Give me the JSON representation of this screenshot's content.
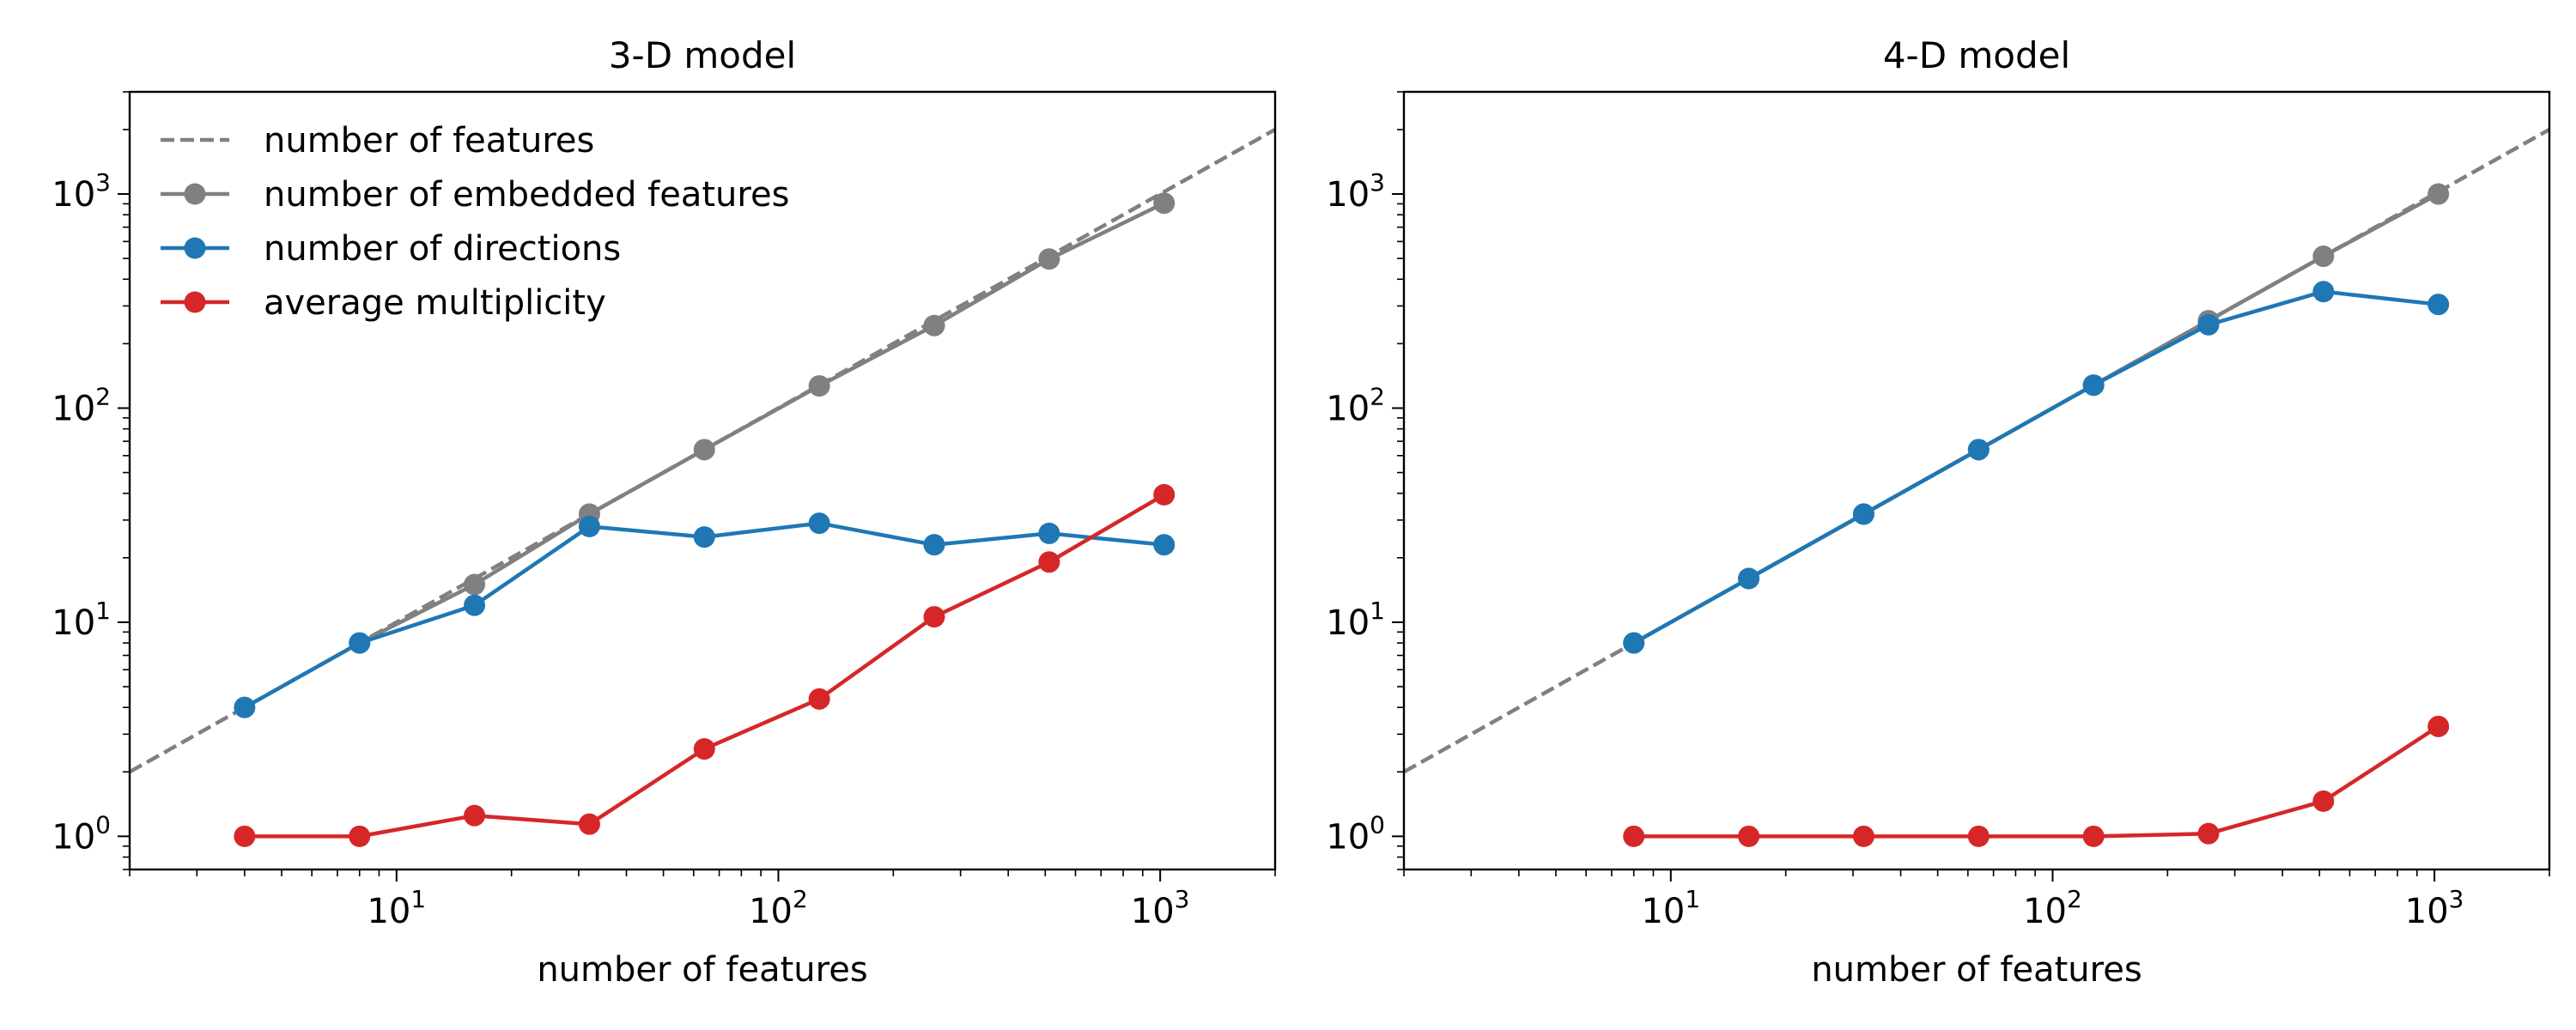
{
  "chart_data": [
    {
      "type": "line",
      "title": "3-D model",
      "xlabel": "number of features",
      "ylabel": "",
      "xscale": "log",
      "yscale": "log",
      "xlim": [
        2,
        2000
      ],
      "ylim": [
        0.7,
        3000
      ],
      "x_ticks": [
        {
          "base": "10",
          "exp": "1",
          "value": 10
        },
        {
          "base": "10",
          "exp": "2",
          "value": 100
        },
        {
          "base": "10",
          "exp": "3",
          "value": 1000
        }
      ],
      "y_ticks": [
        {
          "base": "10",
          "exp": "0",
          "value": 1
        },
        {
          "base": "10",
          "exp": "1",
          "value": 10
        },
        {
          "base": "10",
          "exp": "2",
          "value": 100
        },
        {
          "base": "10",
          "exp": "3",
          "value": 1000
        }
      ],
      "grid": false,
      "legend": "upper-left",
      "series": [
        {
          "name": "number of features",
          "style": "dashed",
          "marker": false,
          "color": "#808080",
          "x": [
            2,
            2000
          ],
          "y": [
            2,
            2000
          ]
        },
        {
          "name": "number of embedded features",
          "style": "solid",
          "marker": true,
          "color": "#808080",
          "x": [
            8,
            16,
            32,
            64,
            128,
            256,
            512,
            1024
          ],
          "y": [
            8,
            15,
            32,
            64,
            127,
            243,
            497,
            906
          ]
        },
        {
          "name": "number of directions",
          "style": "solid",
          "marker": true,
          "color": "#1f77b4",
          "x": [
            4,
            8,
            16,
            32,
            64,
            128,
            256,
            512,
            1024
          ],
          "y": [
            4,
            8,
            12,
            28,
            25,
            29,
            23,
            26,
            23
          ]
        },
        {
          "name": "average multiplicity",
          "style": "solid",
          "marker": true,
          "color": "#d62728",
          "x": [
            4,
            8,
            16,
            32,
            64,
            128,
            256,
            512,
            1024
          ],
          "y": [
            1,
            1,
            1.25,
            1.14,
            2.56,
            4.38,
            10.6,
            19.1,
            39.4
          ]
        }
      ]
    },
    {
      "type": "line",
      "title": "4-D model",
      "xlabel": "number of features",
      "ylabel": "",
      "xscale": "log",
      "yscale": "log",
      "xlim": [
        2,
        2000
      ],
      "ylim": [
        0.7,
        3000
      ],
      "x_ticks": [
        {
          "base": "10",
          "exp": "1",
          "value": 10
        },
        {
          "base": "10",
          "exp": "2",
          "value": 100
        },
        {
          "base": "10",
          "exp": "3",
          "value": 1000
        }
      ],
      "y_ticks": [
        {
          "base": "10",
          "exp": "0",
          "value": 1
        },
        {
          "base": "10",
          "exp": "1",
          "value": 10
        },
        {
          "base": "10",
          "exp": "2",
          "value": 100
        },
        {
          "base": "10",
          "exp": "3",
          "value": 1000
        }
      ],
      "grid": false,
      "legend": "none",
      "series": [
        {
          "name": "number of features",
          "style": "dashed",
          "marker": false,
          "color": "#808080",
          "x": [
            2,
            2000
          ],
          "y": [
            2,
            2000
          ]
        },
        {
          "name": "number of embedded features",
          "style": "solid",
          "marker": true,
          "color": "#808080",
          "x": [
            8,
            16,
            32,
            64,
            128,
            256,
            512,
            1024
          ],
          "y": [
            8,
            16,
            32,
            64,
            128,
            256,
            512,
            1000
          ]
        },
        {
          "name": "number of directions",
          "style": "solid",
          "marker": true,
          "color": "#1f77b4",
          "x": [
            8,
            16,
            32,
            64,
            128,
            256,
            512,
            1024
          ],
          "y": [
            8,
            16,
            32,
            64,
            128,
            245,
            350,
            305
          ]
        },
        {
          "name": "average multiplicity",
          "style": "solid",
          "marker": true,
          "color": "#d62728",
          "x": [
            8,
            16,
            32,
            64,
            128,
            256,
            512,
            1024
          ],
          "y": [
            1,
            1,
            1,
            1,
            1,
            1.03,
            1.46,
            3.26
          ]
        }
      ]
    }
  ]
}
